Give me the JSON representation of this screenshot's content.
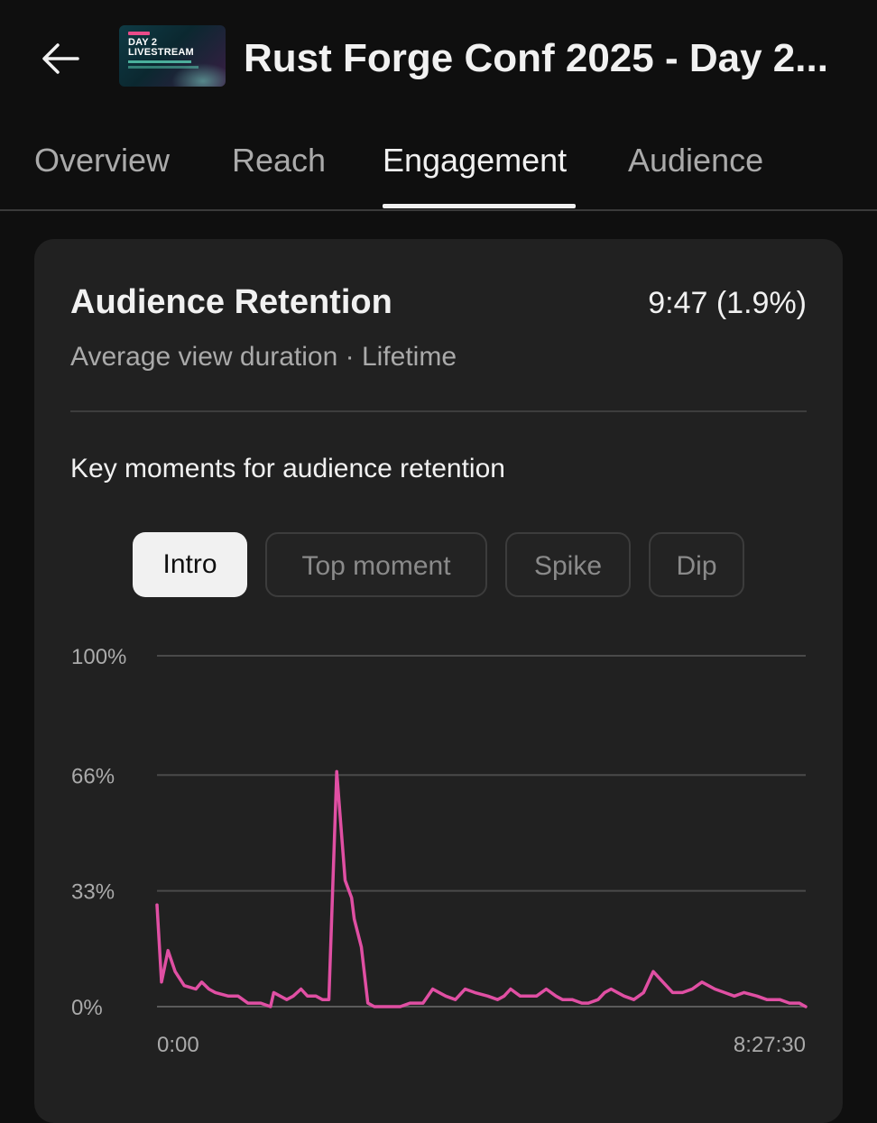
{
  "header": {
    "back_icon": "arrow-left-icon",
    "thumbnail": {
      "line1": "DAY 2",
      "line2": "LIVESTREAM"
    },
    "title": "Rust Forge Conf 2025 - Day 2..."
  },
  "tabs": [
    {
      "label": "Overview",
      "active": false
    },
    {
      "label": "Reach",
      "active": false
    },
    {
      "label": "Engagement",
      "active": true
    },
    {
      "label": "Audience",
      "active": false
    }
  ],
  "card": {
    "title": "Audience Retention",
    "value": "9:47 (1.9%)",
    "subtitle": "Average view duration · Lifetime",
    "moments_label": "Key moments for audience retention",
    "chips": [
      {
        "label": "Intro",
        "active": true
      },
      {
        "label": "Top moment",
        "active": false
      },
      {
        "label": "Spike",
        "active": false
      },
      {
        "label": "Dip",
        "active": false
      }
    ]
  },
  "colors": {
    "background": "#0f0f0f",
    "card": "#212121",
    "line": "#e04fa3",
    "grid": "#4a4a4a"
  },
  "chart_data": {
    "type": "line",
    "title": "",
    "xlabel": "",
    "ylabel": "",
    "ylim": [
      0,
      100
    ],
    "yticks": [
      "100%",
      "66%",
      "33%",
      "0%"
    ],
    "ytick_values": [
      100,
      66,
      33,
      0
    ],
    "xtick_labels": [
      "0:00",
      "8:27:30"
    ],
    "x_range_seconds": [
      0,
      30450
    ],
    "grid": true,
    "series": [
      {
        "x": [
          0,
          0.007,
          0.017,
          0.028,
          0.042,
          0.06,
          0.069,
          0.08,
          0.09,
          0.11,
          0.125,
          0.14,
          0.16,
          0.175,
          0.18,
          0.19,
          0.2,
          0.21,
          0.222,
          0.232,
          0.245,
          0.255,
          0.265,
          0.277,
          0.29,
          0.3,
          0.304,
          0.315,
          0.325,
          0.335,
          0.345,
          0.36,
          0.375,
          0.39,
          0.41,
          0.425,
          0.435,
          0.445,
          0.46,
          0.475,
          0.49,
          0.51,
          0.525,
          0.535,
          0.545,
          0.56,
          0.585,
          0.6,
          0.615,
          0.625,
          0.64,
          0.655,
          0.665,
          0.68,
          0.69,
          0.7,
          0.71,
          0.72,
          0.735,
          0.75,
          0.765,
          0.78,
          0.795,
          0.81,
          0.825,
          0.84,
          0.86,
          0.875,
          0.89,
          0.905,
          0.925,
          0.94,
          0.96,
          0.975,
          0.99,
          1
        ],
        "values": [
          29,
          7,
          16,
          10,
          6,
          5,
          7,
          5,
          4,
          3,
          3,
          1,
          1,
          0,
          4,
          3,
          2,
          3,
          5,
          3,
          3,
          2,
          2,
          67,
          36,
          31,
          25,
          17,
          1,
          0,
          0,
          0,
          0,
          1,
          1,
          5,
          4,
          3,
          2,
          5,
          4,
          3,
          2,
          3,
          5,
          3,
          3,
          5,
          3,
          2,
          2,
          1,
          1,
          2,
          4,
          5,
          4,
          3,
          2,
          4,
          10,
          7,
          4,
          4,
          5,
          7,
          5,
          4,
          3,
          4,
          3,
          2,
          2,
          1,
          1,
          0
        ]
      }
    ]
  }
}
